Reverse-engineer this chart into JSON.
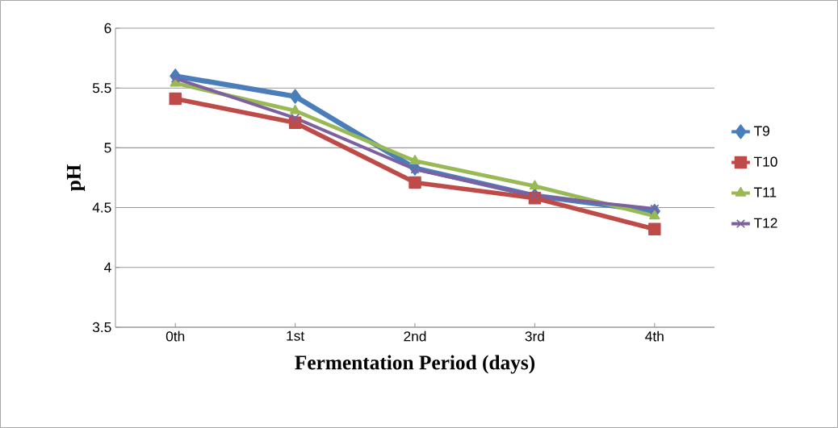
{
  "chart_data": {
    "type": "line",
    "xlabel": "Fermentation Period (days)",
    "ylabel": "pH",
    "categories": [
      "0th",
      "1st",
      "2nd",
      "3rd",
      "4th"
    ],
    "series": [
      {
        "name": "T9",
        "color": "#4a7ebb",
        "marker": "diamond",
        "values": [
          5.6,
          5.43,
          4.83,
          4.6,
          4.47
        ]
      },
      {
        "name": "T10",
        "color": "#be4b48",
        "marker": "square",
        "values": [
          5.41,
          5.21,
          4.71,
          4.58,
          4.32
        ]
      },
      {
        "name": "T11",
        "color": "#98b954",
        "marker": "triangle",
        "values": [
          5.54,
          5.31,
          4.89,
          4.68,
          4.43
        ]
      },
      {
        "name": "T12",
        "color": "#7d60a0",
        "marker": "cross",
        "values": [
          5.58,
          5.25,
          4.82,
          4.6,
          4.49
        ]
      }
    ],
    "ylim": [
      3.5,
      6
    ],
    "yticks": [
      3.5,
      4,
      4.5,
      5,
      5.5,
      6
    ],
    "grid": "y",
    "legend": "right"
  }
}
